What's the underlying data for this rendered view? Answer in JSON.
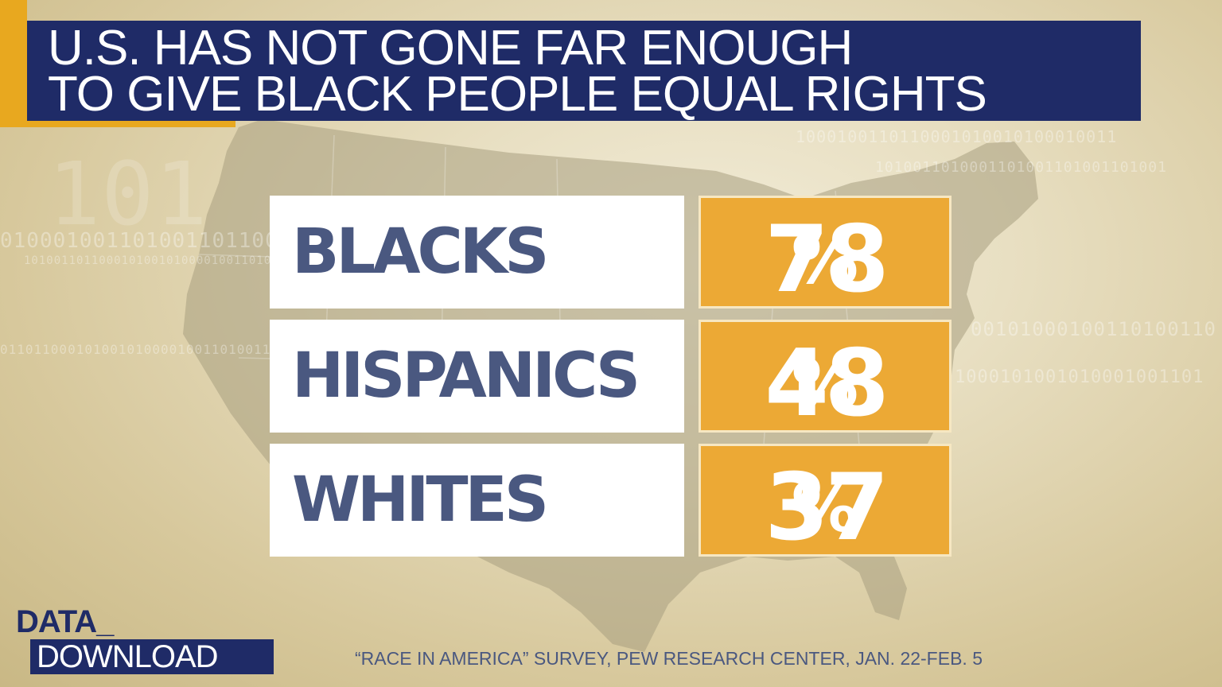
{
  "title": {
    "line1": "U.S. HAS NOT GONE FAR ENOUGH",
    "line2": "TO GIVE BLACK PEOPLE EQUAL RIGHTS"
  },
  "chart_data": {
    "type": "table",
    "title": "U.S. HAS NOT GONE FAR ENOUGH TO GIVE BLACK PEOPLE EQUAL RIGHTS",
    "categories": [
      "BLACKS",
      "HISPANICS",
      "WHITES"
    ],
    "values": [
      78,
      48,
      37
    ],
    "value_labels": [
      "78%",
      "48%",
      "37%"
    ],
    "unit": "%"
  },
  "rows": [
    {
      "label": "BLACKS",
      "value": "78",
      "suffix": "%"
    },
    {
      "label": "HISPANICS",
      "value": "48",
      "suffix": "%"
    },
    {
      "label": "WHITES",
      "value": "37",
      "suffix": "%"
    }
  ],
  "logo": {
    "top": "DATA_",
    "bottom": "DOWNLOAD"
  },
  "source": "“RACE IN AMERICA” SURVEY, PEW RESEARCH CENTER, JAN. 22-FEB. 5",
  "colors": {
    "navy": "#1f2b67",
    "gold": "#e8a81f",
    "value_box": "#eca935",
    "label_text": "#4a5880"
  }
}
